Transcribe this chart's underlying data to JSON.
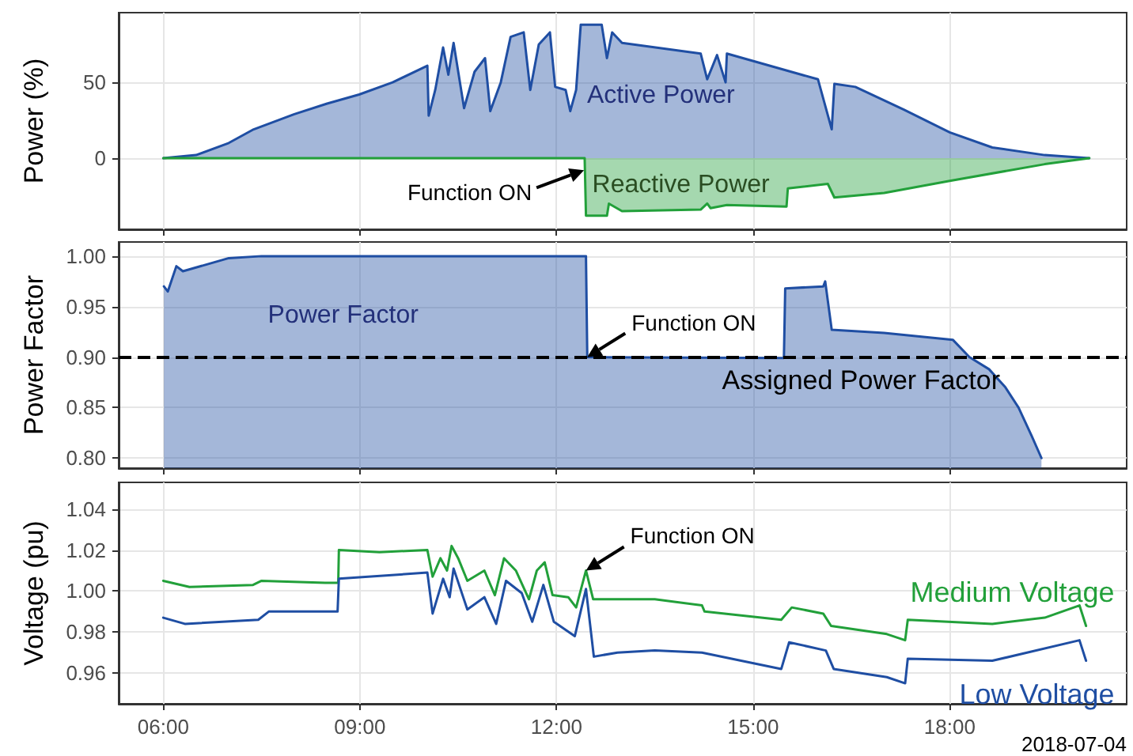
{
  "chart_data": [
    {
      "type": "area",
      "ylabel": "Power (%)",
      "xlim": [
        5.32,
        20.7
      ],
      "ylim": [
        -47,
        96
      ],
      "yticks": [
        0,
        50
      ],
      "xticks": [
        6,
        9,
        12,
        15,
        18
      ],
      "tick_labels": "y",
      "grid": true,
      "marker": "none",
      "line_style": "solid",
      "series": [
        {
          "name": "Active Power",
          "color": "#1f4ea3",
          "x": [
            6.0,
            6.5,
            7.0,
            7.38,
            8.0,
            8.5,
            8.99,
            9.5,
            10.03,
            10.05,
            10.15,
            10.27,
            10.35,
            10.43,
            10.59,
            10.75,
            10.91,
            10.99,
            11.15,
            11.3,
            11.5,
            11.6,
            11.73,
            11.9,
            11.98,
            12.14,
            12.21,
            12.3,
            12.37,
            12.69,
            12.77,
            12.85,
            13.0,
            14.2,
            14.3,
            14.45,
            14.58,
            14.6,
            15.99,
            16.2,
            16.24,
            16.56,
            17.3,
            18.0,
            18.65,
            19.45,
            20.13
          ],
          "values": [
            0,
            2,
            10,
            19,
            29,
            36,
            42,
            50,
            61,
            28,
            45,
            73,
            55,
            76,
            33,
            57,
            66,
            31,
            50,
            80,
            83,
            45,
            75,
            83,
            47,
            45,
            31,
            45,
            88,
            88,
            66,
            83,
            76,
            69,
            52,
            68,
            50,
            69,
            52,
            19,
            49,
            47,
            32,
            17,
            7,
            2,
            0
          ]
        },
        {
          "name": "Reactive Power",
          "color": "#22a03a",
          "x": [
            6.0,
            12.43,
            12.45,
            12.77,
            12.8,
            13.0,
            14.2,
            14.3,
            14.35,
            14.6,
            15.51,
            15.53,
            16.14,
            16.24,
            17.0,
            18.0,
            19.45,
            20.13
          ],
          "values": [
            0,
            0,
            -38,
            -38,
            -30,
            -35,
            -34,
            -30,
            -33,
            -31,
            -32,
            -20,
            -17,
            -26,
            -23,
            -15,
            -4,
            0
          ]
        }
      ],
      "annotations": [
        {
          "text": "Function ON",
          "x": 12.42,
          "y": -8
        }
      ]
    },
    {
      "type": "area",
      "ylabel": "Power Factor",
      "xlim": [
        5.32,
        20.7
      ],
      "ylim": [
        0.79,
        1.014
      ],
      "yticks": [
        {
          "value": 0.8,
          "label": "0.80"
        },
        0.85,
        {
          "value": 0.9,
          "label": "0.90"
        },
        0.95,
        {
          "value": 1.0,
          "label": "1.00"
        }
      ],
      "xticks": [
        6,
        9,
        12,
        15,
        18
      ],
      "tick_labels": "y",
      "grid": true,
      "marker": "none",
      "line_style": "solid",
      "series": [
        {
          "name": "Power Factor",
          "color": "#1f4ea3",
          "x": [
            6.01,
            6.07,
            6.2,
            6.3,
            7.0,
            7.5,
            12.45,
            12.47,
            15.47,
            15.49,
            16.07,
            16.1,
            16.2,
            17.0,
            18.05,
            18.3,
            18.6,
            18.85,
            19.05,
            19.25,
            19.4
          ],
          "values": [
            0.97,
            0.965,
            0.99,
            0.985,
            0.998,
            1.0,
            1.0,
            0.9,
            0.899,
            0.968,
            0.97,
            0.975,
            0.927,
            0.924,
            0.917,
            0.9,
            0.888,
            0.87,
            0.85,
            0.822,
            0.8
          ]
        }
      ],
      "ref_lines": [
        {
          "axis": "y",
          "value": 0.9,
          "label": "Assigned Power Factor",
          "color": "#000000",
          "line_style": "dashed"
        }
      ],
      "annotations": [
        {
          "text": "Function ON",
          "x": 12.47,
          "y": 0.9
        }
      ]
    },
    {
      "type": "line",
      "ylabel": "Voltage (pu)",
      "xlim": [
        5.32,
        20.7
      ],
      "ylim": [
        0.945,
        1.053
      ],
      "yticks": [
        0.96,
        0.98,
        {
          "value": 1.0,
          "label": "1.00"
        },
        1.02,
        1.04
      ],
      "xticks": [
        {
          "value": 6,
          "label": "06:00"
        },
        {
          "value": 9,
          "label": "09:00"
        },
        {
          "value": 12,
          "label": "12:00"
        },
        {
          "value": 15,
          "label": "15:00"
        },
        {
          "value": 18,
          "label": "18:00"
        }
      ],
      "grid": true,
      "marker": "none",
      "line_style": "solid",
      "series": [
        {
          "name": "Medium Voltage",
          "color": "#22a03a",
          "x": [
            6.0,
            6.4,
            7.37,
            7.5,
            8.47,
            8.67,
            8.68,
            9.3,
            10.03,
            10.11,
            10.23,
            10.33,
            10.4,
            10.5,
            10.64,
            10.9,
            11.06,
            11.2,
            11.38,
            11.58,
            11.7,
            11.82,
            11.94,
            12.18,
            12.3,
            12.45,
            12.56,
            12.93,
            13.5,
            14.22,
            14.26,
            15.43,
            15.59,
            16.07,
            16.19,
            17.04,
            17.32,
            17.36,
            18.65,
            19.45,
            19.98,
            20.08
          ],
          "values": [
            1.005,
            1.002,
            1.003,
            1.005,
            1.004,
            1.004,
            1.02,
            1.019,
            1.02,
            1.007,
            1.016,
            1.01,
            1.022,
            1.016,
            1.005,
            1.01,
            0.998,
            1.016,
            1.01,
            0.996,
            1.01,
            1.014,
            0.998,
            0.997,
            0.992,
            1.01,
            0.996,
            0.996,
            0.996,
            0.993,
            0.99,
            0.986,
            0.992,
            0.989,
            0.983,
            0.979,
            0.976,
            0.986,
            0.984,
            0.987,
            0.993,
            0.983
          ]
        },
        {
          "name": "Low Voltage",
          "color": "#1f4ea3",
          "x": [
            6.0,
            6.33,
            7.45,
            7.61,
            8.66,
            8.68,
            10.03,
            10.11,
            10.27,
            10.37,
            10.43,
            10.64,
            10.9,
            11.08,
            11.23,
            11.47,
            11.63,
            11.8,
            11.96,
            12.28,
            12.45,
            12.57,
            12.93,
            13.5,
            14.22,
            15.43,
            15.55,
            16.11,
            16.23,
            17.04,
            17.32,
            17.36,
            18.65,
            19.98,
            20.08
          ],
          "values": [
            0.987,
            0.984,
            0.986,
            0.99,
            0.99,
            1.006,
            1.009,
            0.989,
            1.006,
            0.997,
            1.011,
            0.991,
            0.997,
            0.984,
            1.005,
            0.999,
            0.985,
            1.003,
            0.985,
            0.978,
            1.001,
            0.968,
            0.97,
            0.971,
            0.97,
            0.962,
            0.975,
            0.971,
            0.962,
            0.958,
            0.955,
            0.967,
            0.966,
            0.976,
            0.966
          ]
        }
      ],
      "annotations": [
        {
          "text": "Function ON",
          "x": 12.45,
          "y": 1.01
        },
        "2018-07-04"
      ]
    }
  ]
}
